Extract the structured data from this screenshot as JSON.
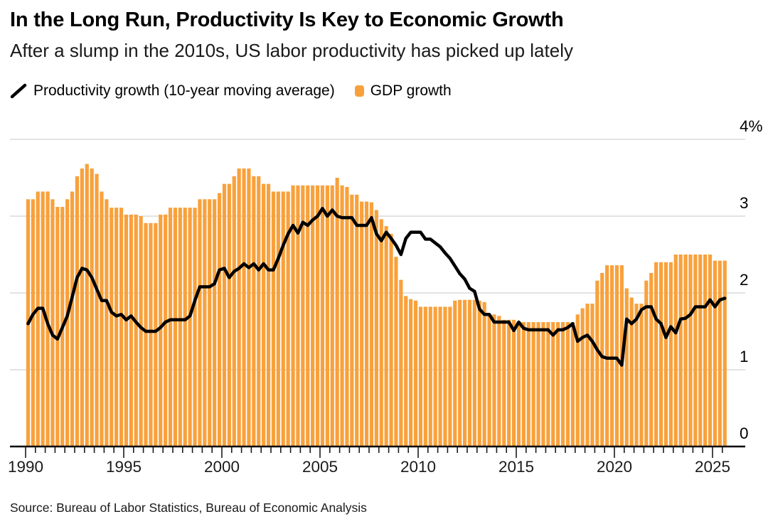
{
  "header": {
    "title": "In the Long Run, Productivity Is Key to Economic Growth",
    "subtitle": "After a slump in the 2010s, US labor productivity has picked up lately"
  },
  "legend": {
    "productivity_label": "Productivity growth (10-year moving average)",
    "gdp_label": "GDP growth"
  },
  "footer": {
    "source": "Source: Bureau of Labor Statistics, Bureau of Economic Analysis"
  },
  "colors": {
    "bar_orange": "#F8A13C",
    "line_black": "#000000",
    "gridline_gray": "#DADADA",
    "axis_black": "#000000"
  },
  "chart_data": {
    "type": "combo",
    "subtypes": [
      "bar",
      "line"
    ],
    "title": "In the Long Run, Productivity Is Key to Economic Growth",
    "unit": "%",
    "x_start_year": 1990,
    "x_end_year": 2025.5,
    "x_frequency": "quarterly",
    "grid": true,
    "legend_position": "top",
    "y_axis": {
      "side": "right",
      "min": 0,
      "max": 4,
      "tick_values": [
        4,
        3,
        2,
        1,
        0
      ],
      "tick_labels": [
        "4%",
        "3",
        "2",
        "1",
        "0"
      ]
    },
    "x_axis": {
      "major_tick_years": [
        1990,
        1995,
        2000,
        2005,
        2010,
        2015,
        2020,
        2025
      ],
      "tick_labels": [
        "1990",
        "1995",
        "2000",
        "2005",
        "2010",
        "2015",
        "2020",
        "2025"
      ],
      "minor_tick_interval_years": 0.5
    },
    "series": [
      {
        "name": "GDP growth",
        "type": "bar",
        "color": "#F8A13C",
        "values": [
          3.22,
          3.22,
          3.32,
          3.32,
          3.32,
          3.22,
          3.12,
          3.12,
          3.22,
          3.32,
          3.52,
          3.62,
          3.68,
          3.62,
          3.55,
          3.32,
          3.22,
          3.11,
          3.11,
          3.11,
          3.02,
          3.02,
          3.02,
          3.0,
          2.91,
          2.91,
          2.91,
          3.02,
          3.02,
          3.11,
          3.11,
          3.11,
          3.11,
          3.11,
          3.11,
          3.22,
          3.22,
          3.22,
          3.22,
          3.3,
          3.42,
          3.42,
          3.52,
          3.62,
          3.62,
          3.62,
          3.52,
          3.52,
          3.42,
          3.42,
          3.32,
          3.32,
          3.32,
          3.32,
          3.4,
          3.4,
          3.4,
          3.4,
          3.4,
          3.4,
          3.4,
          3.4,
          3.4,
          3.5,
          3.4,
          3.38,
          3.28,
          3.28,
          3.19,
          3.19,
          3.18,
          3.08,
          2.96,
          2.87,
          2.77,
          2.47,
          2.17,
          1.96,
          1.92,
          1.9,
          1.82,
          1.82,
          1.82,
          1.82,
          1.82,
          1.82,
          1.82,
          1.9,
          1.91,
          1.91,
          1.91,
          1.91,
          1.9,
          1.88,
          1.72,
          1.72,
          1.7,
          1.65,
          1.65,
          1.65,
          1.62,
          1.62,
          1.62,
          1.62,
          1.62,
          1.62,
          1.62,
          1.62,
          1.62,
          1.62,
          1.62,
          1.62,
          1.72,
          1.8,
          1.86,
          1.86,
          2.16,
          2.26,
          2.36,
          2.36,
          2.36,
          2.36,
          2.06,
          1.94,
          1.86,
          1.86,
          2.16,
          2.26,
          2.4,
          2.4,
          2.4,
          2.4,
          2.5,
          2.5,
          2.5,
          2.5,
          2.5,
          2.5,
          2.5,
          2.5,
          2.42,
          2.42,
          2.42
        ]
      },
      {
        "name": "Productivity growth (10-year moving average)",
        "type": "line",
        "color": "#000000",
        "values": [
          1.6,
          1.72,
          1.8,
          1.8,
          1.6,
          1.45,
          1.4,
          1.55,
          1.7,
          1.95,
          2.2,
          2.32,
          2.3,
          2.2,
          2.05,
          1.9,
          1.9,
          1.75,
          1.7,
          1.72,
          1.65,
          1.7,
          1.62,
          1.55,
          1.5,
          1.5,
          1.5,
          1.55,
          1.62,
          1.65,
          1.65,
          1.65,
          1.65,
          1.7,
          1.9,
          2.08,
          2.08,
          2.08,
          2.12,
          2.3,
          2.32,
          2.2,
          2.28,
          2.32,
          2.38,
          2.33,
          2.38,
          2.3,
          2.38,
          2.3,
          2.3,
          2.45,
          2.62,
          2.77,
          2.88,
          2.78,
          2.92,
          2.88,
          2.95,
          3.0,
          3.1,
          3.0,
          3.08,
          3.0,
          2.98,
          2.98,
          2.98,
          2.88,
          2.88,
          2.88,
          2.98,
          2.77,
          2.68,
          2.79,
          2.71,
          2.62,
          2.5,
          2.71,
          2.79,
          2.79,
          2.79,
          2.7,
          2.7,
          2.65,
          2.6,
          2.52,
          2.45,
          2.35,
          2.25,
          2.18,
          2.06,
          2.02,
          1.79,
          1.72,
          1.72,
          1.62,
          1.62,
          1.62,
          1.62,
          1.51,
          1.62,
          1.54,
          1.52,
          1.52,
          1.52,
          1.52,
          1.52,
          1.45,
          1.52,
          1.52,
          1.55,
          1.6,
          1.37,
          1.42,
          1.45,
          1.37,
          1.26,
          1.17,
          1.15,
          1.15,
          1.15,
          1.06,
          1.66,
          1.6,
          1.66,
          1.78,
          1.82,
          1.82,
          1.66,
          1.6,
          1.42,
          1.56,
          1.48,
          1.66,
          1.67,
          1.72,
          1.82,
          1.82,
          1.82,
          1.91,
          1.82,
          1.91,
          1.93
        ]
      }
    ]
  }
}
